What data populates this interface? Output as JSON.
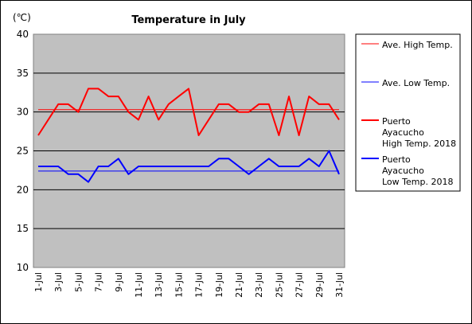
{
  "chart_data": {
    "type": "line",
    "title": "Temperature in July",
    "unit_label": "(℃)",
    "ylim": [
      10,
      40
    ],
    "y_ticks": [
      "10",
      "15",
      "20",
      "25",
      "30",
      "35",
      "40"
    ],
    "x": [
      "1-Jul",
      "2-Jul",
      "3-Jul",
      "4-Jul",
      "5-Jul",
      "6-Jul",
      "7-Jul",
      "8-Jul",
      "9-Jul",
      "10-Jul",
      "11-Jul",
      "12-Jul",
      "13-Jul",
      "14-Jul",
      "15-Jul",
      "16-Jul",
      "17-Jul",
      "18-Jul",
      "19-Jul",
      "20-Jul",
      "21-Jul",
      "22-Jul",
      "23-Jul",
      "24-Jul",
      "25-Jul",
      "26-Jul",
      "27-Jul",
      "28-Jul",
      "29-Jul",
      "30-Jul",
      "31-Jul"
    ],
    "x_tick_labels": [
      "1-Jul",
      "3-Jul",
      "5-Jul",
      "7-Jul",
      "9-Jul",
      "11-Jul",
      "13-Jul",
      "15-Jul",
      "17-Jul",
      "19-Jul",
      "21-Jul",
      "23-Jul",
      "25-Jul",
      "27-Jul",
      "29-Jul",
      "31-Jul"
    ],
    "grid": true,
    "legend_position": "right",
    "series": [
      {
        "name": "Ave. High Temp.",
        "color": "#ff0000",
        "style": "thin",
        "values": [
          30.3,
          30.3,
          30.3,
          30.3,
          30.3,
          30.3,
          30.3,
          30.3,
          30.3,
          30.3,
          30.3,
          30.3,
          30.3,
          30.3,
          30.3,
          30.3,
          30.3,
          30.3,
          30.3,
          30.3,
          30.3,
          30.3,
          30.3,
          30.3,
          30.3,
          30.3,
          30.3,
          30.3,
          30.3,
          30.3,
          30.3
        ]
      },
      {
        "name": "Ave. Low Temp.",
        "color": "#0000ff",
        "style": "thin",
        "values": [
          22.4,
          22.4,
          22.4,
          22.4,
          22.4,
          22.4,
          22.4,
          22.4,
          22.4,
          22.4,
          22.4,
          22.4,
          22.4,
          22.4,
          22.4,
          22.4,
          22.4,
          22.4,
          22.4,
          22.4,
          22.4,
          22.4,
          22.4,
          22.4,
          22.4,
          22.4,
          22.4,
          22.4,
          22.4,
          22.4,
          22.4
        ]
      },
      {
        "name": "Puerto Ayacucho High Temp. 2018",
        "legend_lines": [
          "Puerto",
          "Ayacucho",
          "High Temp. 2018"
        ],
        "color": "#ff0000",
        "style": "thick",
        "values": [
          27,
          29,
          31,
          31,
          30,
          33,
          33,
          32,
          32,
          30,
          29,
          32,
          29,
          31,
          32,
          33,
          27,
          29,
          31,
          31,
          30,
          30,
          31,
          31,
          27,
          32,
          27,
          32,
          31,
          31,
          29
        ]
      },
      {
        "name": "Puerto Ayacucho Low Temp. 2018",
        "legend_lines": [
          "Puerto",
          "Ayacucho",
          "Low Temp. 2018"
        ],
        "color": "#0000ff",
        "style": "thick",
        "values": [
          23,
          23,
          23,
          22,
          22,
          21,
          23,
          23,
          24,
          22,
          23,
          23,
          23,
          23,
          23,
          23,
          23,
          23,
          24,
          24,
          23,
          22,
          23,
          24,
          23,
          23,
          23,
          24,
          23,
          25,
          22
        ]
      }
    ]
  }
}
